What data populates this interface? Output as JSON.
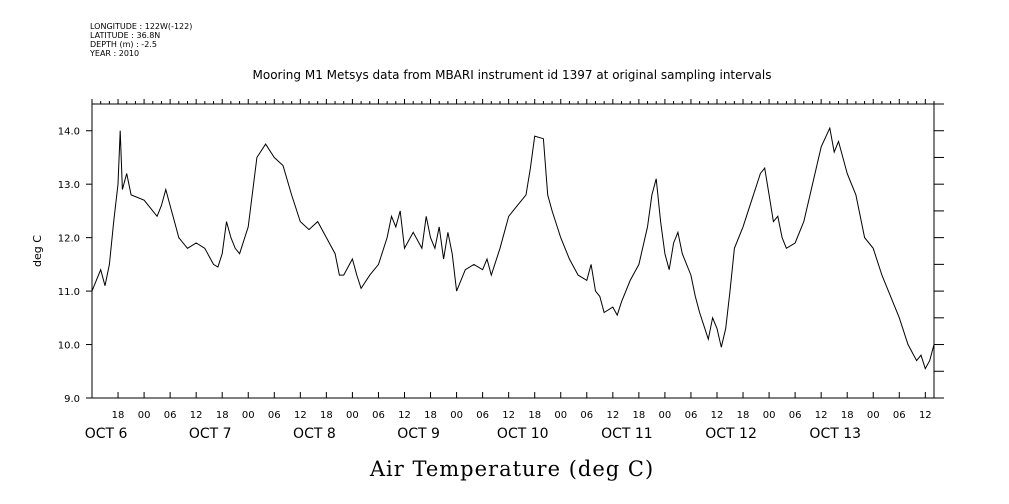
{
  "header": {
    "longitude": "LONGITUDE : 122W(-122)",
    "latitude": "LATITUDE : 36.8N",
    "depth": "DEPTH (m) : -2.5",
    "year": "YEAR : 2010"
  },
  "chart_data": {
    "type": "line",
    "title": "Mooring M1 Metsys data from MBARI instrument id 1397 at original sampling intervals",
    "xlabel": "Air Temperature (deg C)",
    "ylabel": "deg C",
    "ylim": [
      9.0,
      14.5
    ],
    "yticks": [
      "9.0",
      "10.0",
      "11.0",
      "12.0",
      "13.0",
      "14.0"
    ],
    "xlim": [
      "2010-10-05T12:00",
      "2010-10-13T14:00"
    ],
    "hour_ticks": [
      "18",
      "00",
      "06",
      "12",
      "18",
      "00",
      "06",
      "12",
      "18",
      "00",
      "06",
      "12",
      "18",
      "00",
      "06",
      "12",
      "18",
      "00",
      "06",
      "12",
      "18",
      "00",
      "06",
      "12",
      "18",
      "00",
      "06",
      "12",
      "18",
      "00",
      "06",
      "12"
    ],
    "day_labels": [
      "OCT  6",
      "OCT  7",
      "OCT  8",
      "OCT  9",
      "OCT 10",
      "OCT 11",
      "OCT 12",
      "OCT 13"
    ],
    "series": [
      {
        "values": [
          [
            "2010-10-05T12:00",
            11.0
          ],
          [
            "2010-10-05T13:00",
            11.2
          ],
          [
            "2010-10-05T14:00",
            11.4
          ],
          [
            "2010-10-05T15:00",
            11.1
          ],
          [
            "2010-10-05T16:00",
            11.5
          ],
          [
            "2010-10-05T17:00",
            12.3
          ],
          [
            "2010-10-05T18:00",
            13.0
          ],
          [
            "2010-10-05T18:30",
            14.0
          ],
          [
            "2010-10-05T19:00",
            12.9
          ],
          [
            "2010-10-05T20:00",
            13.2
          ],
          [
            "2010-10-05T21:00",
            12.8
          ],
          [
            "2010-10-06T00:00",
            12.7
          ],
          [
            "2010-10-06T02:00",
            12.5
          ],
          [
            "2010-10-06T03:00",
            12.4
          ],
          [
            "2010-10-06T04:00",
            12.6
          ],
          [
            "2010-10-06T05:00",
            12.9
          ],
          [
            "2010-10-06T06:00",
            12.6
          ],
          [
            "2010-10-06T07:00",
            12.3
          ],
          [
            "2010-10-06T08:00",
            12.0
          ],
          [
            "2010-10-06T09:00",
            11.9
          ],
          [
            "2010-10-06T10:00",
            11.8
          ],
          [
            "2010-10-06T12:00",
            11.9
          ],
          [
            "2010-10-06T14:00",
            11.8
          ],
          [
            "2010-10-06T16:00",
            11.5
          ],
          [
            "2010-10-06T17:00",
            11.45
          ],
          [
            "2010-10-06T18:00",
            11.7
          ],
          [
            "2010-10-06T19:00",
            12.3
          ],
          [
            "2010-10-06T20:00",
            12.0
          ],
          [
            "2010-10-06T21:00",
            11.8
          ],
          [
            "2010-10-06T22:00",
            11.7
          ],
          [
            "2010-10-07T00:00",
            12.2
          ],
          [
            "2010-10-07T02:00",
            13.5
          ],
          [
            "2010-10-07T04:00",
            13.75
          ],
          [
            "2010-10-07T06:00",
            13.5
          ],
          [
            "2010-10-07T08:00",
            13.35
          ],
          [
            "2010-10-07T10:00",
            12.8
          ],
          [
            "2010-10-07T12:00",
            12.3
          ],
          [
            "2010-10-07T14:00",
            12.15
          ],
          [
            "2010-10-07T16:00",
            12.3
          ],
          [
            "2010-10-07T18:00",
            12.0
          ],
          [
            "2010-10-07T20:00",
            11.7
          ],
          [
            "2010-10-07T21:00",
            11.3
          ],
          [
            "2010-10-07T22:00",
            11.3
          ],
          [
            "2010-10-08T00:00",
            11.6
          ],
          [
            "2010-10-08T01:00",
            11.3
          ],
          [
            "2010-10-08T02:00",
            11.05
          ],
          [
            "2010-10-08T04:00",
            11.3
          ],
          [
            "2010-10-08T06:00",
            11.5
          ],
          [
            "2010-10-08T08:00",
            12.0
          ],
          [
            "2010-10-08T09:00",
            12.4
          ],
          [
            "2010-10-08T10:00",
            12.2
          ],
          [
            "2010-10-08T11:00",
            12.5
          ],
          [
            "2010-10-08T12:00",
            11.8
          ],
          [
            "2010-10-08T14:00",
            12.1
          ],
          [
            "2010-10-08T16:00",
            11.8
          ],
          [
            "2010-10-08T17:00",
            12.4
          ],
          [
            "2010-10-08T18:00",
            12.0
          ],
          [
            "2010-10-08T19:00",
            11.8
          ],
          [
            "2010-10-08T20:00",
            12.2
          ],
          [
            "2010-10-08T21:00",
            11.6
          ],
          [
            "2010-10-08T22:00",
            12.1
          ],
          [
            "2010-10-08T23:00",
            11.7
          ],
          [
            "2010-10-09T00:00",
            11.0
          ],
          [
            "2010-10-09T02:00",
            11.4
          ],
          [
            "2010-10-09T04:00",
            11.5
          ],
          [
            "2010-10-09T06:00",
            11.4
          ],
          [
            "2010-10-09T07:00",
            11.6
          ],
          [
            "2010-10-09T08:00",
            11.3
          ],
          [
            "2010-10-09T10:00",
            11.8
          ],
          [
            "2010-10-09T12:00",
            12.4
          ],
          [
            "2010-10-09T14:00",
            12.6
          ],
          [
            "2010-10-09T16:00",
            12.8
          ],
          [
            "2010-10-09T17:00",
            13.3
          ],
          [
            "2010-10-09T18:00",
            13.9
          ],
          [
            "2010-10-09T20:00",
            13.85
          ],
          [
            "2010-10-09T21:00",
            12.8
          ],
          [
            "2010-10-09T22:00",
            12.5
          ],
          [
            "2010-10-10T00:00",
            12.0
          ],
          [
            "2010-10-10T02:00",
            11.6
          ],
          [
            "2010-10-10T04:00",
            11.3
          ],
          [
            "2010-10-10T06:00",
            11.2
          ],
          [
            "2010-10-10T07:00",
            11.5
          ],
          [
            "2010-10-10T08:00",
            11.0
          ],
          [
            "2010-10-10T09:00",
            10.9
          ],
          [
            "2010-10-10T10:00",
            10.6
          ],
          [
            "2010-10-10T12:00",
            10.7
          ],
          [
            "2010-10-10T13:00",
            10.55
          ],
          [
            "2010-10-10T14:00",
            10.8
          ],
          [
            "2010-10-10T16:00",
            11.2
          ],
          [
            "2010-10-10T18:00",
            11.5
          ],
          [
            "2010-10-10T20:00",
            12.2
          ],
          [
            "2010-10-10T21:00",
            12.8
          ],
          [
            "2010-10-10T22:00",
            13.1
          ],
          [
            "2010-10-10T23:00",
            12.3
          ],
          [
            "2010-10-11T00:00",
            11.7
          ],
          [
            "2010-10-11T01:00",
            11.4
          ],
          [
            "2010-10-11T02:00",
            11.9
          ],
          [
            "2010-10-11T03:00",
            12.1
          ],
          [
            "2010-10-11T04:00",
            11.7
          ],
          [
            "2010-10-11T06:00",
            11.3
          ],
          [
            "2010-10-11T07:00",
            10.9
          ],
          [
            "2010-10-11T08:00",
            10.6
          ],
          [
            "2010-10-11T10:00",
            10.1
          ],
          [
            "2010-10-11T11:00",
            10.5
          ],
          [
            "2010-10-11T12:00",
            10.3
          ],
          [
            "2010-10-11T13:00",
            9.95
          ],
          [
            "2010-10-11T14:00",
            10.3
          ],
          [
            "2010-10-11T15:00",
            11.0
          ],
          [
            "2010-10-11T16:00",
            11.8
          ],
          [
            "2010-10-11T18:00",
            12.2
          ],
          [
            "2010-10-11T20:00",
            12.7
          ],
          [
            "2010-10-11T22:00",
            13.2
          ],
          [
            "2010-10-11T23:00",
            13.3
          ],
          [
            "2010-10-12T00:00",
            12.8
          ],
          [
            "2010-10-12T01:00",
            12.3
          ],
          [
            "2010-10-12T02:00",
            12.4
          ],
          [
            "2010-10-12T03:00",
            12.0
          ],
          [
            "2010-10-12T04:00",
            11.8
          ],
          [
            "2010-10-12T06:00",
            11.9
          ],
          [
            "2010-10-12T08:00",
            12.3
          ],
          [
            "2010-10-12T10:00",
            13.0
          ],
          [
            "2010-10-12T12:00",
            13.7
          ],
          [
            "2010-10-12T14:00",
            14.05
          ],
          [
            "2010-10-12T15:00",
            13.6
          ],
          [
            "2010-10-12T16:00",
            13.8
          ],
          [
            "2010-10-12T18:00",
            13.2
          ],
          [
            "2010-10-12T20:00",
            12.8
          ],
          [
            "2010-10-12T22:00",
            12.0
          ],
          [
            "2010-10-13T00:00",
            11.8
          ],
          [
            "2010-10-13T02:00",
            11.3
          ],
          [
            "2010-10-13T04:00",
            10.9
          ],
          [
            "2010-10-13T06:00",
            10.5
          ],
          [
            "2010-10-13T08:00",
            10.0
          ],
          [
            "2010-10-13T10:00",
            9.7
          ],
          [
            "2010-10-13T11:00",
            9.8
          ],
          [
            "2010-10-13T12:00",
            9.55
          ],
          [
            "2010-10-13T13:00",
            9.7
          ],
          [
            "2010-10-13T14:00",
            10.0
          ]
        ]
      }
    ]
  }
}
